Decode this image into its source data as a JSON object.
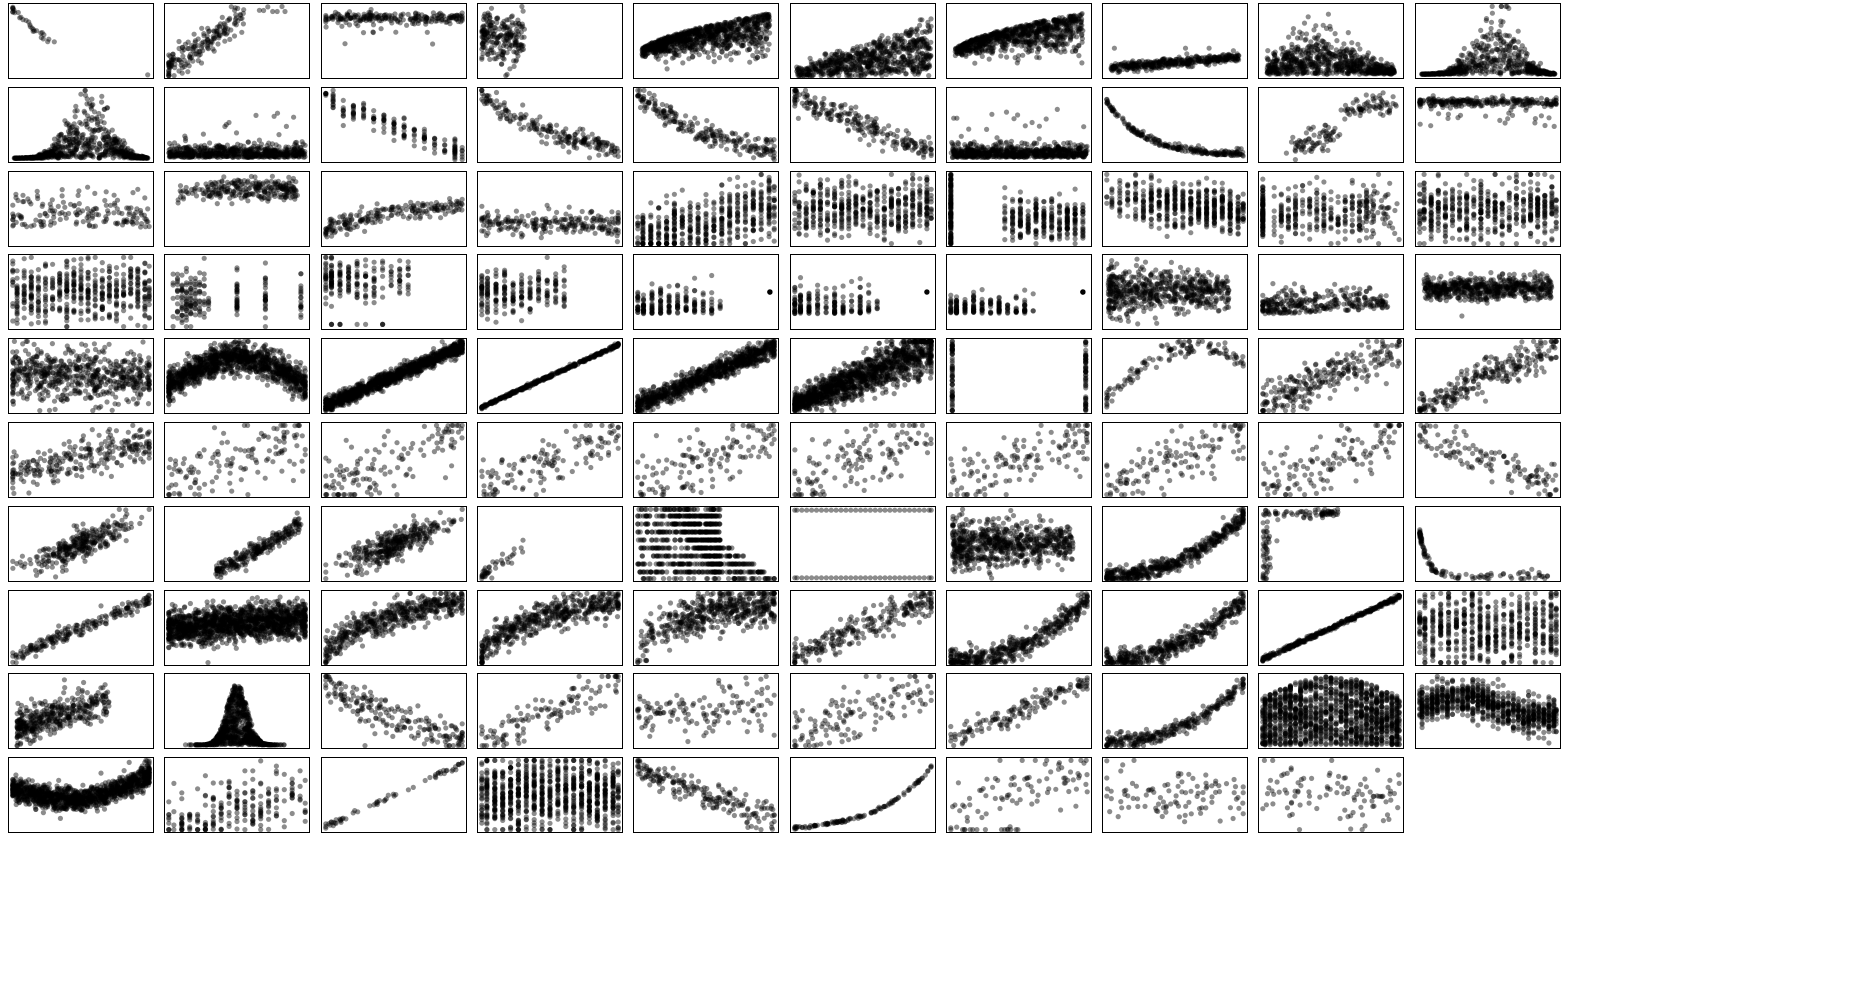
{
  "colors": {
    "point": "#000000",
    "point_opacity": 0.45,
    "frame": "#000000",
    "background": "#ffffff"
  },
  "chart_data": {
    "type": "scatter",
    "layout": {
      "rows": 10,
      "cols": 10,
      "panel_count": 99,
      "empty_slot": "bottom-right"
    },
    "axes_ticks": "none",
    "title": "",
    "panels": [
      {
        "id": 1,
        "shape": "neg-linear",
        "n": 30,
        "noise": 0.03,
        "xr": [
          0,
          0.25
        ]
      },
      {
        "id": 2,
        "shape": "concave-up-pos",
        "n": 180,
        "noise": 0.1,
        "xr": [
          0,
          0.5
        ]
      },
      {
        "id": 3,
        "shape": "flat-top",
        "n": 220,
        "noise": 0.06
      },
      {
        "id": 4,
        "shape": "left-blob",
        "n": 220,
        "noise": 0.15
      },
      {
        "id": 5,
        "shape": "wedge-dense",
        "n": 900,
        "noise": 0.1
      },
      {
        "id": 6,
        "shape": "wedge",
        "n": 700,
        "noise": 0.1
      },
      {
        "id": 7,
        "shape": "wedge-dense",
        "n": 800,
        "noise": 0.1
      },
      {
        "id": 8,
        "shape": "thin-band-low",
        "n": 400,
        "noise": 0.03
      },
      {
        "id": 9,
        "shape": "triangle-low",
        "n": 700,
        "noise": 0.1
      },
      {
        "id": 10,
        "shape": "peak-mid",
        "n": 600,
        "noise": 0.1
      },
      {
        "id": 11,
        "shape": "peak-mid",
        "n": 700,
        "noise": 0.1
      },
      {
        "id": 12,
        "shape": "bottom-flat",
        "n": 600,
        "noise": 0.08
      },
      {
        "id": 13,
        "shape": "neg-steps",
        "n": 160,
        "noise": 0.08
      },
      {
        "id": 14,
        "shape": "neg-decay",
        "n": 200,
        "noise": 0.07
      },
      {
        "id": 15,
        "shape": "neg-decay",
        "n": 220,
        "noise": 0.07
      },
      {
        "id": 16,
        "shape": "neg-linear",
        "n": 220,
        "noise": 0.09
      },
      {
        "id": 17,
        "shape": "bottom-flat",
        "n": 700,
        "noise": 0.05
      },
      {
        "id": 18,
        "shape": "exp-decay",
        "n": 220,
        "noise": 0.04
      },
      {
        "id": 19,
        "shape": "pos-clusters",
        "n": 140,
        "noise": 0.06
      },
      {
        "id": 20,
        "shape": "flat-top",
        "n": 260,
        "noise": 0.05
      },
      {
        "id": 21,
        "shape": "sparse-low",
        "n": 160,
        "noise": 0.12
      },
      {
        "id": 22,
        "shape": "flat-top-mid",
        "n": 260,
        "noise": 0.07
      },
      {
        "id": 23,
        "shape": "concave-rise",
        "n": 200,
        "noise": 0.07
      },
      {
        "id": 24,
        "shape": "flat-low-mid",
        "n": 220,
        "noise": 0.08
      },
      {
        "id": 25,
        "shape": "columns-rise",
        "n": 500,
        "noise": 0.12
      },
      {
        "id": 26,
        "shape": "columns",
        "n": 500,
        "noise": 0.2
      },
      {
        "id": 27,
        "shape": "columns-gap",
        "n": 420,
        "noise": 0.15
      },
      {
        "id": 28,
        "shape": "columns-top",
        "n": 500,
        "noise": 0.15
      },
      {
        "id": 29,
        "shape": "columns-sparse",
        "n": 400,
        "noise": 0.18
      },
      {
        "id": 30,
        "shape": "columns",
        "n": 520,
        "noise": 0.2
      },
      {
        "id": 31,
        "shape": "columns",
        "n": 480,
        "noise": 0.2
      },
      {
        "id": 32,
        "shape": "few-columns",
        "n": 200,
        "noise": 0.2
      },
      {
        "id": 33,
        "shape": "few-columns-top",
        "n": 200,
        "noise": 0.15
      },
      {
        "id": 34,
        "shape": "few-columns-mid",
        "n": 220,
        "noise": 0.15
      },
      {
        "id": 35,
        "shape": "few-columns-low",
        "n": 200,
        "noise": 0.08
      },
      {
        "id": 36,
        "shape": "few-columns-low",
        "n": 200,
        "noise": 0.08
      },
      {
        "id": 37,
        "shape": "few-columns-low",
        "n": 200,
        "noise": 0.06
      },
      {
        "id": 38,
        "shape": "left-blob-dense",
        "n": 600,
        "noise": 0.15
      },
      {
        "id": 39,
        "shape": "low-sparse",
        "n": 300,
        "noise": 0.08
      },
      {
        "id": 40,
        "shape": "band-mid",
        "n": 600,
        "noise": 0.08
      },
      {
        "id": 41,
        "shape": "cloud-mid",
        "n": 600,
        "noise": 0.18
      },
      {
        "id": 42,
        "shape": "hump",
        "n": 1200,
        "noise": 0.1
      },
      {
        "id": 43,
        "shape": "pos-linear",
        "n": 1200,
        "noise": 0.05
      },
      {
        "id": 44,
        "shape": "pos-line-tight",
        "n": 400,
        "noise": 0.01
      },
      {
        "id": 45,
        "shape": "pos-linear",
        "n": 900,
        "noise": 0.07
      },
      {
        "id": 46,
        "shape": "pos-fan",
        "n": 1300,
        "noise": 0.13
      },
      {
        "id": 47,
        "shape": "two-sides",
        "n": 120,
        "noise": 0.2
      },
      {
        "id": 48,
        "shape": "arc",
        "n": 120,
        "noise": 0.07
      },
      {
        "id": 49,
        "shape": "pos-linear",
        "n": 260,
        "noise": 0.14
      },
      {
        "id": 50,
        "shape": "pos-linear",
        "n": 260,
        "noise": 0.12
      },
      {
        "id": 51,
        "shape": "pos-linear-weak",
        "n": 250,
        "noise": 0.12
      },
      {
        "id": 52,
        "shape": "pos-sparse",
        "n": 130,
        "noise": 0.17
      },
      {
        "id": 53,
        "shape": "pos-sparse",
        "n": 130,
        "noise": 0.17
      },
      {
        "id": 54,
        "shape": "pos-sparse",
        "n": 130,
        "noise": 0.14
      },
      {
        "id": 55,
        "shape": "pos-sparse",
        "n": 130,
        "noise": 0.16
      },
      {
        "id": 56,
        "shape": "pos-sparse",
        "n": 130,
        "noise": 0.17
      },
      {
        "id": 57,
        "shape": "pos-sparse",
        "n": 130,
        "noise": 0.14
      },
      {
        "id": 58,
        "shape": "pos-sparse",
        "n": 130,
        "noise": 0.14
      },
      {
        "id": 59,
        "shape": "pos-sparse",
        "n": 130,
        "noise": 0.15
      },
      {
        "id": 60,
        "shape": "neg-linear",
        "n": 130,
        "noise": 0.12
      },
      {
        "id": 61,
        "shape": "pos-blob",
        "n": 300,
        "noise": 0.08
      },
      {
        "id": 62,
        "shape": "pos-linear-right",
        "n": 250,
        "noise": 0.06
      },
      {
        "id": 63,
        "shape": "pos-blob",
        "n": 350,
        "noise": 0.08
      },
      {
        "id": 64,
        "shape": "left-corner",
        "n": 40,
        "noise": 0.05
      },
      {
        "id": 65,
        "shape": "stripes",
        "n": 900,
        "noise": 0.02
      },
      {
        "id": 66,
        "shape": "binary-rows",
        "n": 60,
        "noise": 0.0
      },
      {
        "id": 67,
        "shape": "left-blob-dense",
        "n": 700,
        "noise": 0.12
      },
      {
        "id": 68,
        "shape": "convex-rise",
        "n": 500,
        "noise": 0.06
      },
      {
        "id": 69,
        "shape": "L-shape",
        "n": 120,
        "noise": 0.03
      },
      {
        "id": 70,
        "shape": "L-decay",
        "n": 120,
        "noise": 0.03
      },
      {
        "id": 71,
        "shape": "pos-linear",
        "n": 200,
        "noise": 0.05
      },
      {
        "id": 72,
        "shape": "band-dense",
        "n": 1500,
        "noise": 0.12
      },
      {
        "id": 73,
        "shape": "log-rise",
        "n": 500,
        "noise": 0.1
      },
      {
        "id": 74,
        "shape": "log-rise",
        "n": 500,
        "noise": 0.1
      },
      {
        "id": 75,
        "shape": "log-rise-steep",
        "n": 500,
        "noise": 0.14
      },
      {
        "id": 76,
        "shape": "pos-linear",
        "n": 250,
        "noise": 0.1
      },
      {
        "id": 77,
        "shape": "convex-rise",
        "n": 450,
        "noise": 0.08
      },
      {
        "id": 78,
        "shape": "convex-rise",
        "n": 450,
        "noise": 0.07
      },
      {
        "id": 79,
        "shape": "pos-line-tight",
        "n": 400,
        "noise": 0.015
      },
      {
        "id": 80,
        "shape": "columns-full",
        "n": 600,
        "noise": 0.2
      },
      {
        "id": 81,
        "shape": "pos-blob-left",
        "n": 400,
        "noise": 0.12
      },
      {
        "id": 82,
        "shape": "spike",
        "n": 800,
        "noise": 0.05
      },
      {
        "id": 83,
        "shape": "neg-decay",
        "n": 200,
        "noise": 0.12
      },
      {
        "id": 84,
        "shape": "pos-linear",
        "n": 120,
        "noise": 0.13
      },
      {
        "id": 85,
        "shape": "cloud-mid",
        "n": 130,
        "noise": 0.2
      },
      {
        "id": 86,
        "shape": "pos-sparse",
        "n": 130,
        "noise": 0.13
      },
      {
        "id": 87,
        "shape": "pos-linear",
        "n": 150,
        "noise": 0.08
      },
      {
        "id": 88,
        "shape": "convex-rise",
        "n": 300,
        "noise": 0.05
      },
      {
        "id": 89,
        "shape": "columns-arch",
        "n": 1500,
        "noise": 0.05
      },
      {
        "id": 90,
        "shape": "columns-wave",
        "n": 900,
        "noise": 0.05
      },
      {
        "id": 91,
        "shape": "u-band",
        "n": 1200,
        "noise": 0.08
      },
      {
        "id": 92,
        "shape": "columns-rise",
        "n": 220,
        "noise": 0.1
      },
      {
        "id": 93,
        "shape": "pos-line-tight",
        "n": 60,
        "noise": 0.02
      },
      {
        "id": 94,
        "shape": "columns-full",
        "n": 900,
        "noise": 0.2
      },
      {
        "id": 95,
        "shape": "neg-linear",
        "n": 200,
        "noise": 0.1
      },
      {
        "id": 96,
        "shape": "exp-rise",
        "n": 120,
        "noise": 0.01
      },
      {
        "id": 97,
        "shape": "pos-sparse",
        "n": 100,
        "noise": 0.2
      },
      {
        "id": 98,
        "shape": "cloud-mid",
        "n": 100,
        "noise": 0.2
      },
      {
        "id": 99,
        "shape": "cloud-mid",
        "n": 100,
        "noise": 0.2
      }
    ]
  }
}
